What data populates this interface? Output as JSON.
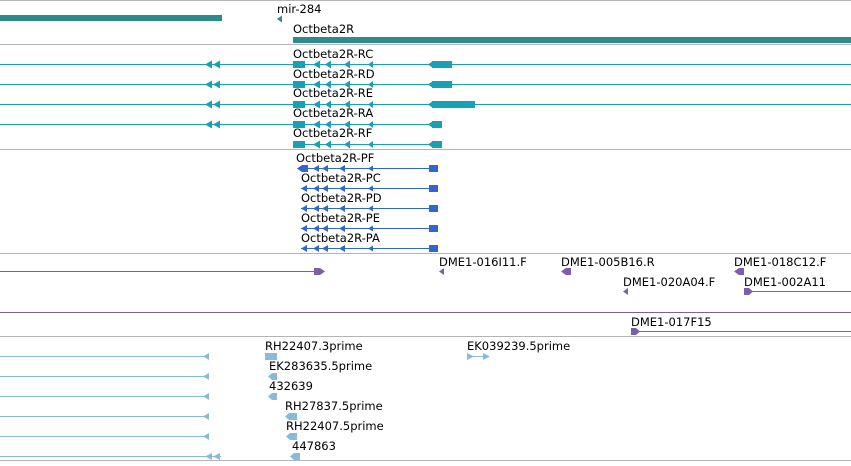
{
  "colors": {
    "background": "#ffffff",
    "separator": "#b4b4b4",
    "gene": "#2e8b8b",
    "transcript_rc": "#1aa0b4",
    "transcript_pc": "#3366cc",
    "clone": "#7b5fac",
    "est": "#88bbd8"
  },
  "tracks": {
    "genes": {
      "labels": {
        "mir284": "mir-284",
        "octbeta2r": "Octbeta2R"
      }
    },
    "transcripts_rna": {
      "labels": [
        "Octbeta2R-RC",
        "Octbeta2R-RD",
        "Octbeta2R-RE",
        "Octbeta2R-RA",
        "Octbeta2R-RF"
      ]
    },
    "transcripts_protein": {
      "labels": [
        "Octbeta2R-PF",
        "Octbeta2R-PC",
        "Octbeta2R-PD",
        "Octbeta2R-PE",
        "Octbeta2R-PA"
      ]
    },
    "clones": {
      "labels": {
        "dme1_016i11": "DME1-016I11.F",
        "dme1_005b16": "DME1-005B16.R",
        "dme1_018c12": "DME1-018C12.F",
        "dme1_020a04": "DME1-020A04.F",
        "dme1_002a11": "DME1-002A11",
        "dme1_017f15": "DME1-017F15"
      }
    },
    "ests": {
      "labels": {
        "rh22407_3": "RH22407.3prime",
        "ek039239_5": "EK039239.5prime",
        "ek283635_5": "EK283635.5prime",
        "n432639": "432639",
        "rh27837_5": "RH27837.5prime",
        "rh22407_5": "RH22407.5prime",
        "n447863": "447863"
      }
    }
  }
}
